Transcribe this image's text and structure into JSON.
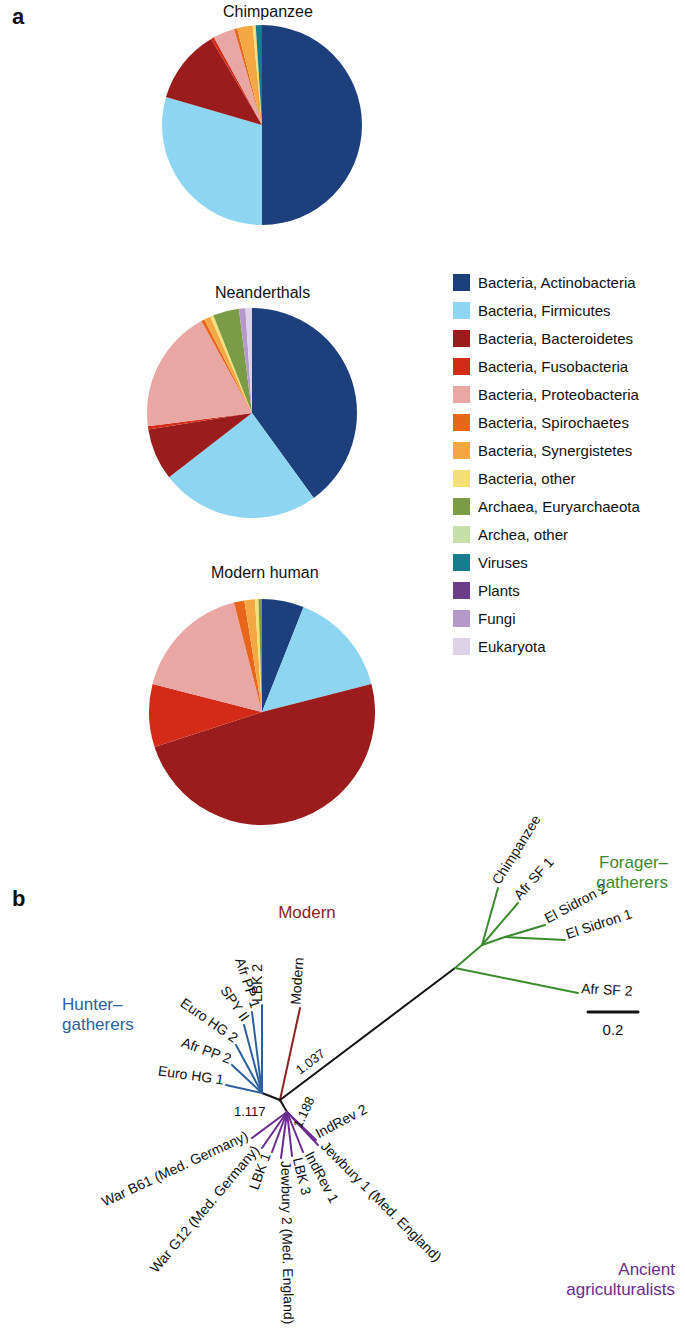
{
  "panels": [
    "a",
    "b"
  ],
  "chart_data": [
    {
      "type": "pie",
      "title": "Chimpanzee",
      "categories": [
        "Bacteria, Actinobacteria",
        "Bacteria, Firmicutes",
        "Bacteria, Bacteroidetes",
        "Bacteria, Fusobacteria",
        "Bacteria, Proteobacteria",
        "Bacteria, Spirochaetes",
        "Bacteria, Synergistetes",
        "Bacteria, other",
        "Archaea, Euryarchaeota",
        "Archea, other",
        "Viruses",
        "Plants",
        "Fungi",
        "Eukaryota"
      ],
      "values": [
        50,
        29.5,
        12,
        0.5,
        3.5,
        0.5,
        2.5,
        0.5,
        0,
        0,
        1,
        0,
        0,
        0
      ],
      "colors": [
        "#1d3f7c",
        "#8ed5f2",
        "#9a1c1c",
        "#d42b18",
        "#e8a7a3",
        "#e8661c",
        "#f4a844",
        "#f5df78",
        "#7b9c47",
        "#c7e0a9",
        "#197c8c",
        "#6b3d86",
        "#b59ac9",
        "#ded2e8"
      ]
    },
    {
      "type": "pie",
      "title": "Neanderthals",
      "categories": [
        "Bacteria, Actinobacteria",
        "Bacteria, Firmicutes",
        "Bacteria, Bacteroidetes",
        "Bacteria, Fusobacteria",
        "Bacteria, Proteobacteria",
        "Bacteria, Spirochaetes",
        "Bacteria, Synergistetes",
        "Bacteria, other",
        "Archaea, Euryarchaeota",
        "Archea, other",
        "Viruses",
        "Plants",
        "Fungi",
        "Eukaryota"
      ],
      "values": [
        40,
        24.5,
        8,
        0.5,
        19,
        0.5,
        1,
        0.5,
        4,
        0,
        0,
        0,
        1,
        1
      ],
      "colors": [
        "#1d3f7c",
        "#8ed5f2",
        "#9a1c1c",
        "#d42b18",
        "#e8a7a3",
        "#e8661c",
        "#f4a844",
        "#f5df78",
        "#7b9c47",
        "#c7e0a9",
        "#197c8c",
        "#6b3d86",
        "#b59ac9",
        "#ded2e8"
      ]
    },
    {
      "type": "pie",
      "title": "Modern human",
      "categories": [
        "Bacteria, Actinobacteria",
        "Bacteria, Firmicutes",
        "Bacteria, Bacteroidetes",
        "Bacteria, Fusobacteria",
        "Bacteria, Proteobacteria",
        "Bacteria, Spirochaetes",
        "Bacteria, Synergistetes",
        "Bacteria, other",
        "Archaea, Euryarchaeota",
        "Archea, other",
        "Viruses",
        "Plants",
        "Fungi",
        "Eukaryota"
      ],
      "values": [
        6,
        15,
        49,
        9,
        17,
        1.5,
        1.5,
        0.5,
        0.5,
        0,
        0,
        0,
        0,
        0
      ],
      "colors": [
        "#1d3f7c",
        "#8ed5f2",
        "#9a1c1c",
        "#d42b18",
        "#e8a7a3",
        "#e8661c",
        "#f4a844",
        "#f5df78",
        "#7b9c47",
        "#c7e0a9",
        "#197c8c",
        "#6b3d86",
        "#b59ac9",
        "#ded2e8"
      ]
    }
  ],
  "tree": {
    "groups": [
      {
        "label": "Hunter–gatherers",
        "color": "#2c5f9e",
        "support": 1.117,
        "tips": [
          "LBK 2",
          "Afr PP 1",
          "SPY II",
          "Euro HG 2",
          "Afr PP 2",
          "Euro HG 1"
        ]
      },
      {
        "label": "Modern",
        "color": "#8b2323",
        "tips": [
          "Modern"
        ]
      },
      {
        "label": "Forager–gatherers",
        "color": "#3c8a2e",
        "support": 1.037,
        "tips": [
          "Chimpanzee",
          "Afr SF 1",
          "El Sidron 2",
          "El Sidron 1",
          "Afr SF 2"
        ]
      },
      {
        "label": "Ancient agriculturalists",
        "color": "#6a2c8e",
        "support": 1.188,
        "tips": [
          "IndRev 2",
          "Jewbury 1 (Med. England)",
          "IndRev 1",
          "LBK 3",
          "Jewbury 2 (Med. England)",
          "LBK 1",
          "War G12 (Med. Germany)",
          "War B61 (Med. Germany)"
        ]
      }
    ],
    "scale_bar": 0.2
  }
}
